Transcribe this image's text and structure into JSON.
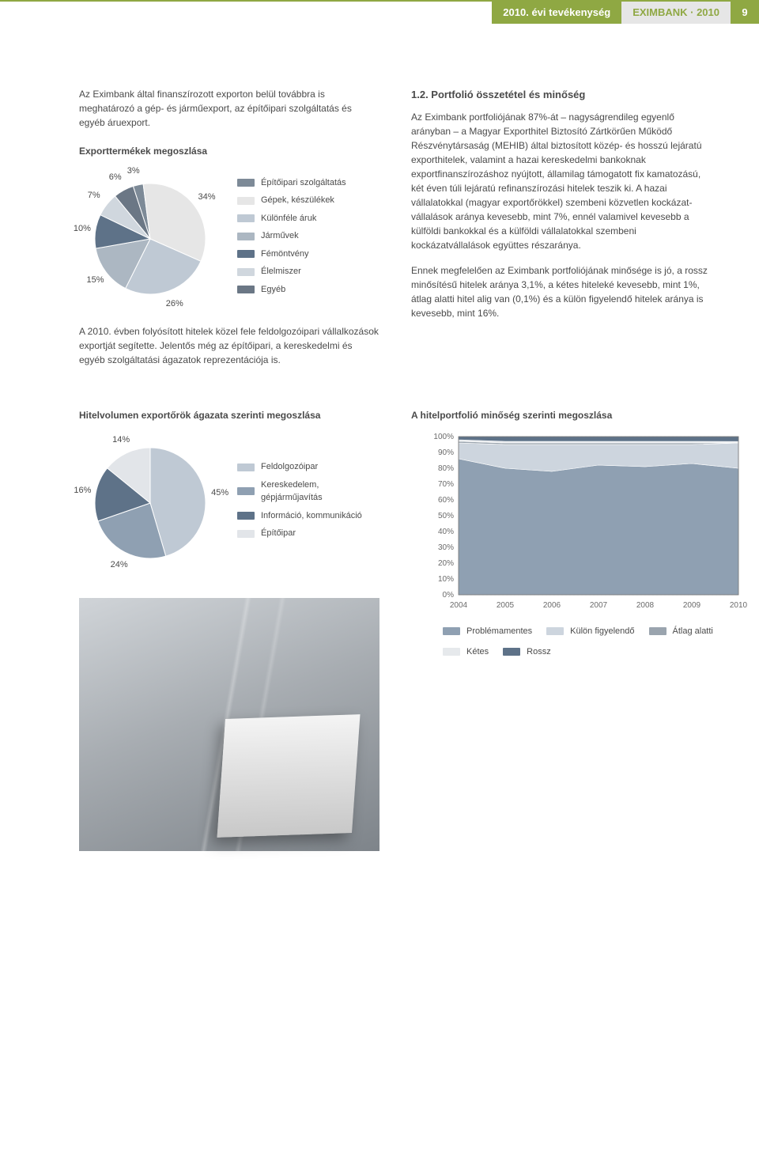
{
  "header": {
    "section": "2010. évi tevékenység",
    "doc": "EXIMBANK · 2010",
    "page": "9"
  },
  "intro_left": "Az Eximbank által finanszírozott exporton belül továbbra is meghatározó a gép- és járműexport, az építőipari szolgáltatás és egyéb áruexport.",
  "chart1": {
    "title": "Exporttermékek megoszlása",
    "type": "pie",
    "background_color": "#ffffff",
    "data": [
      {
        "label": "Építőipari szolgáltatás",
        "value": 3,
        "color": "#7d8a97"
      },
      {
        "label": "Gépek, készülékek",
        "value": 34,
        "color": "#e6e6e6"
      },
      {
        "label": "Különféle áruk",
        "value": 26,
        "color": "#bfc9d4"
      },
      {
        "label": "Járművek",
        "value": 15,
        "color": "#acb7c2"
      },
      {
        "label": "Fémöntvény",
        "value": 10,
        "color": "#5e7288"
      },
      {
        "label": "Élelmiszer",
        "value": 7,
        "color": "#d0d7de"
      },
      {
        "label": "Egyéb",
        "value": 6,
        "color": "#6b7785"
      }
    ],
    "label_fontsize": 11,
    "label_color": "#4a4a4a"
  },
  "mid_left_text": "A 2010. évben folyósított hitelek közel fele feldolgozóipari vállalkozások exportját segítette. Jelentős még az építőipari, a kereskedelmi és egyéb szolgáltatási ágazatok reprezentációja is.",
  "chart2": {
    "title": "Hitelvolumen exportőrök ágazata szerinti megoszlása",
    "type": "pie",
    "background_color": "#ffffff",
    "data": [
      {
        "label": "Feldolgozóipar",
        "value": 45,
        "color": "#bfc9d4"
      },
      {
        "label": "Kereskedelem, gépjárműjavítás",
        "value": 24,
        "color": "#8fa0b2"
      },
      {
        "label": "Információ, kommunikáció",
        "value": 16,
        "color": "#5e7288"
      },
      {
        "label": "Építőipar",
        "value": 14,
        "color": "#e2e5e9"
      }
    ],
    "label_fontsize": 11
  },
  "right_title": "1.2. Portfolió összetétel és minőség",
  "right_p1": "Az Eximbank portfoliójának 87%-át – nagyságrendileg egyenlő arányban – a Magyar Exporthitel Biztosító Zártkörűen Működő Részvénytársaság (MEHIB) által biztosított közép- és hosszú lejáratú exporthitelek, valamint a hazai kereskedelmi bankoknak exportfinanszírozáshoz nyújtott, államilag támogatott fix kamatozású, két éven túli lejáratú refinanszírozási hitelek teszik ki. A hazai vállalatokkal (magyar exportőrökkel) szembeni közvetlen kockázat-vállalások aránya kevesebb, mint 7%, ennél valamivel kevesebb a külföldi bankokkal és a külföldi vállalatokkal szembeni kockázatvállalások együttes részaránya.",
  "right_p2": "Ennek megfelelően az Eximbank portfoliójának minősége is jó, a rossz minősítésű hitelek aránya 3,1%, a kétes hiteleké kevesebb, mint 1%, átlag alatti hitel alig van (0,1%) és a külön figyelendő hitelek aránya is kevesebb, mint 16%.",
  "chart3": {
    "title": "A hitelportfolió minőség szerinti megoszlása",
    "type": "area-stacked",
    "years": [
      "2004",
      "2005",
      "2006",
      "2007",
      "2008",
      "2009",
      "2010"
    ],
    "ylim": [
      0,
      100
    ],
    "ytick_step": 10,
    "ylabels": [
      "0%",
      "10%",
      "20%",
      "30%",
      "40%",
      "50%",
      "60%",
      "70%",
      "80%",
      "90%",
      "100%"
    ],
    "grid_color": "#bfc9d4",
    "background_color": "#ffffff",
    "series": [
      {
        "name": "Problémamentes",
        "color": "#8fa0b2",
        "values": [
          86,
          80,
          78,
          82,
          81,
          83,
          80
        ]
      },
      {
        "name": "Külön figyelendő",
        "color": "#cdd5de",
        "values": [
          10,
          15,
          17,
          13,
          14,
          12,
          16
        ]
      },
      {
        "name": "Átlag alatti",
        "color": "#9aa4ae",
        "values": [
          1,
          1,
          1,
          1,
          1,
          1,
          0.1
        ]
      },
      {
        "name": "Kétes",
        "color": "#e6e9ec",
        "values": [
          1,
          1,
          1,
          1,
          1,
          1,
          0.8
        ]
      },
      {
        "name": "Rossz",
        "color": "#5e7288",
        "values": [
          2,
          3,
          3,
          3,
          3,
          3,
          3.1
        ]
      }
    ],
    "label_fontsize": 10
  }
}
